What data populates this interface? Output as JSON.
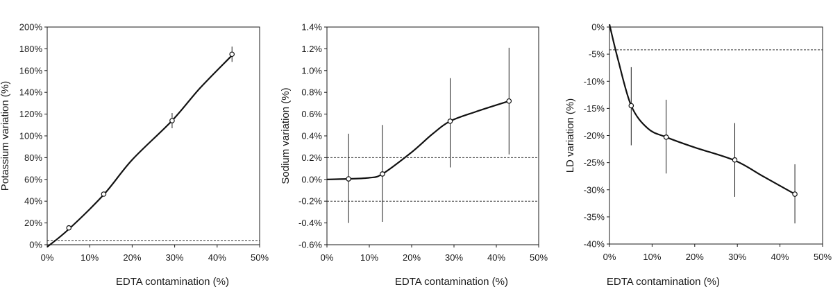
{
  "chart_data": [
    {
      "type": "line",
      "title": "",
      "xlabel": "EDTA contamination (%)",
      "ylabel": "Potassium variation (%)",
      "xlim": [
        0,
        50
      ],
      "ylim": [
        0,
        200
      ],
      "xticks": [
        0,
        10,
        20,
        30,
        40,
        50
      ],
      "yticks": [
        0,
        20,
        40,
        60,
        80,
        100,
        120,
        140,
        160,
        180,
        200
      ],
      "tick_suffix": "%",
      "grid": false,
      "curve": [
        [
          0,
          -2
        ],
        [
          5,
          14
        ],
        [
          13.3,
          46
        ],
        [
          20,
          78
        ],
        [
          29.4,
          114
        ],
        [
          36,
          144
        ],
        [
          43.5,
          174
        ]
      ],
      "points": [
        {
          "x": 5.1,
          "y": 15.5,
          "err_low": 14.5,
          "err_high": 16.5
        },
        {
          "x": 13.3,
          "y": 46.5,
          "err_low": 44.5,
          "err_high": 48.5
        },
        {
          "x": 29.4,
          "y": 114,
          "err_low": 107,
          "err_high": 121
        },
        {
          "x": 43.5,
          "y": 175,
          "err_low": 168,
          "err_high": 182
        }
      ],
      "reference_lines": [
        4
      ]
    },
    {
      "type": "line",
      "title": "",
      "xlabel": "EDTA contamination (%)",
      "ylabel": "Sodium variation (%)",
      "xlim": [
        0,
        50
      ],
      "ylim": [
        -0.6,
        1.4
      ],
      "xticks": [
        0,
        10,
        20,
        30,
        40,
        50
      ],
      "yticks": [
        -0.6,
        -0.4,
        -0.2,
        0.0,
        0.2,
        0.4,
        0.6,
        0.8,
        1.0,
        1.2,
        1.4
      ],
      "tick_decimals": 1,
      "tick_suffix": "%",
      "grid": false,
      "curve": [
        [
          0,
          0.0
        ],
        [
          5.1,
          0.005
        ],
        [
          10,
          0.015
        ],
        [
          13.1,
          0.05
        ],
        [
          20,
          0.25
        ],
        [
          25,
          0.42
        ],
        [
          29.1,
          0.535
        ],
        [
          35,
          0.62
        ],
        [
          43,
          0.72
        ]
      ],
      "points": [
        {
          "x": 5.1,
          "y": 0.005,
          "err_low": -0.4,
          "err_high": 0.42
        },
        {
          "x": 13.1,
          "y": 0.05,
          "err_low": -0.39,
          "err_high": 0.5
        },
        {
          "x": 29.1,
          "y": 0.535,
          "err_low": 0.11,
          "err_high": 0.93
        },
        {
          "x": 43,
          "y": 0.72,
          "err_low": 0.23,
          "err_high": 1.21
        }
      ],
      "reference_lines": [
        0.2,
        -0.2
      ]
    },
    {
      "type": "line",
      "title": "",
      "xlabel": "EDTA contamination (%)",
      "ylabel": "LD variation (%)",
      "xlim": [
        0,
        50
      ],
      "ylim": [
        -40,
        0
      ],
      "xticks": [
        0,
        10,
        20,
        30,
        40,
        50
      ],
      "yticks": [
        -40,
        -35,
        -30,
        -25,
        -20,
        -15,
        -10,
        -5,
        0
      ],
      "tick_suffix": "%",
      "grid": false,
      "curve": [
        [
          0,
          0.5
        ],
        [
          2,
          -6
        ],
        [
          5.1,
          -14.5
        ],
        [
          9,
          -18.7
        ],
        [
          13.3,
          -20.3
        ],
        [
          20,
          -22.2
        ],
        [
          29.4,
          -24.6
        ],
        [
          36,
          -27.5
        ],
        [
          43.5,
          -30.8
        ]
      ],
      "points": [
        {
          "x": 5.1,
          "y": -14.5,
          "err_low": -21.8,
          "err_high": -7.4
        },
        {
          "x": 13.3,
          "y": -20.3,
          "err_low": -27,
          "err_high": -13.4
        },
        {
          "x": 29.4,
          "y": -24.5,
          "err_low": -31.3,
          "err_high": -17.7
        },
        {
          "x": 43.5,
          "y": -30.8,
          "err_low": -36.2,
          "err_high": -25.3
        }
      ],
      "reference_lines": [
        -4.2
      ]
    }
  ]
}
